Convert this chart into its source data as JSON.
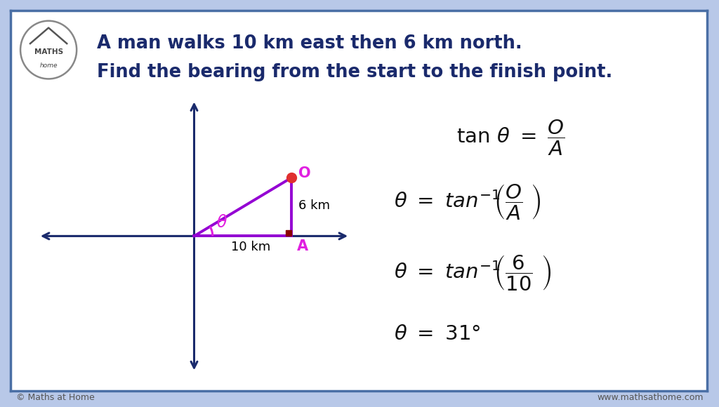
{
  "title_line1": "A man walks 10 km east then 6 km north.",
  "title_line2": "Find the bearing from the start to the finish point.",
  "title_color": "#1a2a6c",
  "bg_color": "#ffffff",
  "outer_bg": "#b8c8e8",
  "border_color": "#4a6fa5",
  "axis_color": "#1a2a6c",
  "triangle_color": "#9400d3",
  "point_color": "#e03030",
  "right_angle_color": "#8b0000",
  "label_O_color": "#e020e0",
  "label_A_color": "#e020e0",
  "label_theta_color": "#e020e0",
  "label_6km_color": "#000000",
  "label_10km_color": "#000000",
  "eq_color": "#111111",
  "footer_left": "© Maths at Home",
  "footer_right": "www.mathsathome.com"
}
